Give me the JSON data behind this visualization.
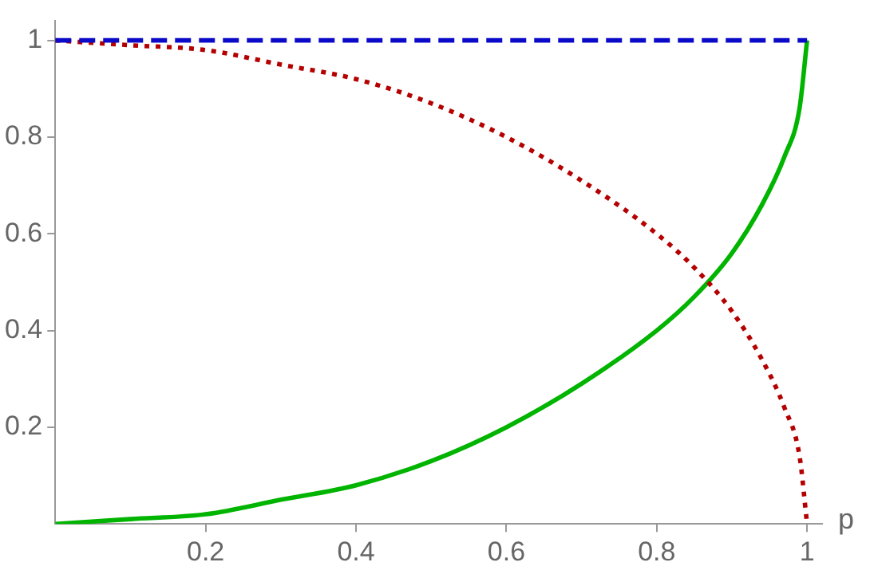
{
  "chart_data": {
    "type": "line",
    "xlabel": "p",
    "xlim": [
      0,
      1.02
    ],
    "ylim": [
      0,
      1.04
    ],
    "xticks": [
      0.2,
      0.4,
      0.6,
      0.8,
      1
    ],
    "yticks": [
      0.2,
      0.4,
      0.6,
      0.8,
      1
    ],
    "x": [
      0,
      0.1,
      0.2,
      0.3,
      0.4,
      0.5,
      0.6,
      0.7,
      0.8,
      0.85,
      0.9,
      0.94,
      0.97,
      0.99,
      1
    ],
    "series": [
      {
        "color": "#0a0ac8",
        "line_style": "dashed",
        "values": [
          1,
          1,
          1,
          1,
          1,
          1,
          1,
          1,
          1,
          1,
          1,
          1,
          1,
          1,
          1
        ]
      },
      {
        "color": "#b40000",
        "line_style": "dotted",
        "values": [
          1,
          0.99,
          0.98,
          0.95,
          0.92,
          0.87,
          0.8,
          0.71,
          0.6,
          0.53,
          0.44,
          0.34,
          0.24,
          0.14,
          0
        ]
      },
      {
        "color": "#00b400",
        "line_style": "solid",
        "values": [
          0,
          0.01,
          0.02,
          0.05,
          0.08,
          0.13,
          0.2,
          0.29,
          0.4,
          0.47,
          0.56,
          0.66,
          0.76,
          0.86,
          1
        ]
      }
    ],
    "grid": false,
    "legend": false,
    "marker": "none"
  }
}
